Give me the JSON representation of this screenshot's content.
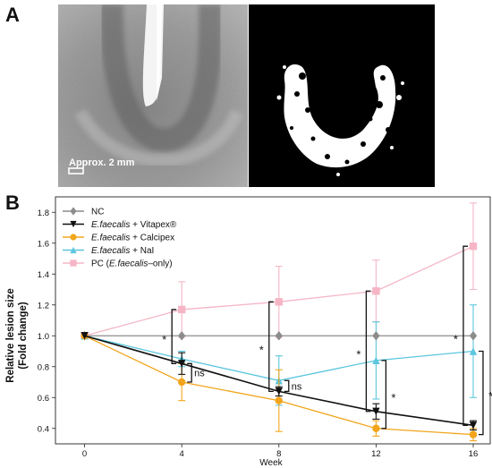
{
  "panel_a": {
    "letter": "A",
    "scale_bar_label": "Approx. 2 mm"
  },
  "panel_b": {
    "letter": "B"
  },
  "chart_data": {
    "type": "line",
    "xlabel": "Week",
    "ylabel_lines": [
      "Relative lesion size",
      "(Fold change)"
    ],
    "x": [
      0,
      4,
      8,
      12,
      16
    ],
    "x_ticks": [
      "0",
      "4",
      "8",
      "12",
      "16"
    ],
    "ylim": [
      0.3,
      1.9
    ],
    "y_ticks": [
      "0.4",
      "0.6",
      "0.8",
      "1.0",
      "1.2",
      "1.4",
      "1.6",
      "1.8"
    ],
    "grid": false,
    "legend_position": "top-left",
    "series": [
      {
        "name": "NC",
        "key": "nc",
        "color": "#8c8c8c",
        "marker": "diamond",
        "values": [
          1.0,
          1.0,
          1.0,
          1.0,
          1.0
        ],
        "errors": [
          0,
          0,
          0,
          0,
          0
        ]
      },
      {
        "name": "E.faecalis + Vitapex®",
        "key": "vitapex",
        "color": "#111111",
        "marker": "tri-down",
        "values": [
          1.0,
          0.82,
          0.64,
          0.51,
          0.42
        ],
        "errors": [
          0,
          0.07,
          0.03,
          0.05,
          0.03
        ]
      },
      {
        "name": "E.faecalis + Calcipex",
        "key": "calcipex",
        "color": "#f2a51c",
        "marker": "circle",
        "values": [
          1.0,
          0.7,
          0.58,
          0.4,
          0.36
        ],
        "errors": [
          0,
          0.12,
          0.2,
          0.05,
          0.04
        ]
      },
      {
        "name": "E.faecalis + NaI",
        "key": "nai",
        "color": "#5bc6de",
        "marker": "tri-up",
        "values": [
          1.0,
          0.85,
          0.71,
          0.84,
          0.9
        ],
        "errors": [
          0,
          0.05,
          0.16,
          0.25,
          0.3
        ]
      },
      {
        "name": "PC (E.faecalis–only)",
        "key": "pc",
        "color": "#f5b5c5",
        "marker": "square",
        "values": [
          1.0,
          1.17,
          1.22,
          1.29,
          1.58
        ],
        "errors": [
          0,
          0.18,
          0.23,
          0.2,
          0.28
        ]
      }
    ],
    "legend_entries": [
      {
        "italic": "",
        "rest": "NC"
      },
      {
        "italic": "E.faecalis",
        "rest": " + Vitapex®"
      },
      {
        "italic": "E.faecalis",
        "rest": " + Calcipex"
      },
      {
        "italic": "E.faecalis",
        "rest": " + NaI"
      },
      {
        "italic": "",
        "rest": "PC (",
        "italic2": "E.faecalis",
        "rest2": "–only)"
      }
    ],
    "significance_brackets": [
      {
        "x": 4,
        "side": "left",
        "y_top": 1.17,
        "y_bottom": 0.82,
        "label": "*"
      },
      {
        "x": 4,
        "side": "right",
        "y_top": 0.82,
        "y_bottom": 0.7,
        "label": "ns"
      },
      {
        "x": 8,
        "side": "left",
        "y_top": 1.22,
        "y_bottom": 0.64,
        "label": "*"
      },
      {
        "x": 8,
        "side": "right",
        "y_top": 0.71,
        "y_bottom": 0.64,
        "label": "ns"
      },
      {
        "x": 12,
        "side": "left",
        "y_top": 1.29,
        "y_bottom": 0.51,
        "label": "*"
      },
      {
        "x": 12,
        "side": "right",
        "y_top": 0.84,
        "y_bottom": 0.4,
        "label": "*"
      },
      {
        "x": 16,
        "side": "left",
        "y_top": 1.58,
        "y_bottom": 0.42,
        "label": "*"
      },
      {
        "x": 16,
        "side": "right",
        "y_top": 0.9,
        "y_bottom": 0.36,
        "label": "*"
      }
    ]
  }
}
